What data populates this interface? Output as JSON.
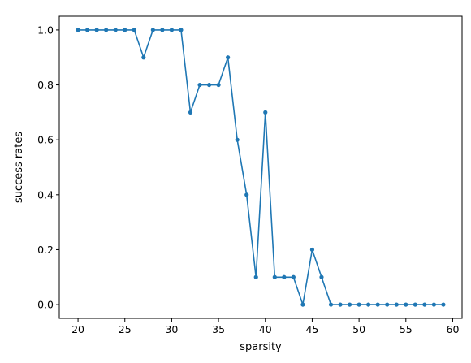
{
  "chart_data": {
    "type": "line",
    "xlabel": "sparsity",
    "ylabel": "success rates",
    "xlim": [
      18,
      61
    ],
    "ylim": [
      -0.05,
      1.05
    ],
    "xticks": [
      20,
      25,
      30,
      35,
      40,
      45,
      50,
      55,
      60
    ],
    "yticks": [
      0.0,
      0.2,
      0.4,
      0.6,
      0.8,
      1.0
    ],
    "xtick_labels": [
      "20",
      "25",
      "30",
      "35",
      "40",
      "45",
      "50",
      "55",
      "60"
    ],
    "ytick_labels": [
      "0.0",
      "0.2",
      "0.4",
      "0.6",
      "0.8",
      "1.0"
    ],
    "grid": false,
    "color": "#1f77b4",
    "marker": "circle",
    "x": [
      20,
      21,
      22,
      23,
      24,
      25,
      26,
      27,
      28,
      29,
      30,
      31,
      32,
      33,
      34,
      35,
      36,
      37,
      38,
      39,
      40,
      41,
      42,
      43,
      44,
      45,
      46,
      47,
      48,
      49,
      50,
      51,
      52,
      53,
      54,
      55,
      56,
      57,
      58,
      59
    ],
    "y": [
      1.0,
      1.0,
      1.0,
      1.0,
      1.0,
      1.0,
      1.0,
      0.9,
      1.0,
      1.0,
      1.0,
      1.0,
      0.7,
      0.8,
      0.8,
      0.8,
      0.9,
      0.6,
      0.4,
      0.1,
      0.7,
      0.1,
      0.1,
      0.1,
      0.0,
      0.2,
      0.1,
      0.0,
      0.0,
      0.0,
      0.0,
      0.0,
      0.0,
      0.0,
      0.0,
      0.0,
      0.0,
      0.0,
      0.0,
      0.0
    ]
  }
}
